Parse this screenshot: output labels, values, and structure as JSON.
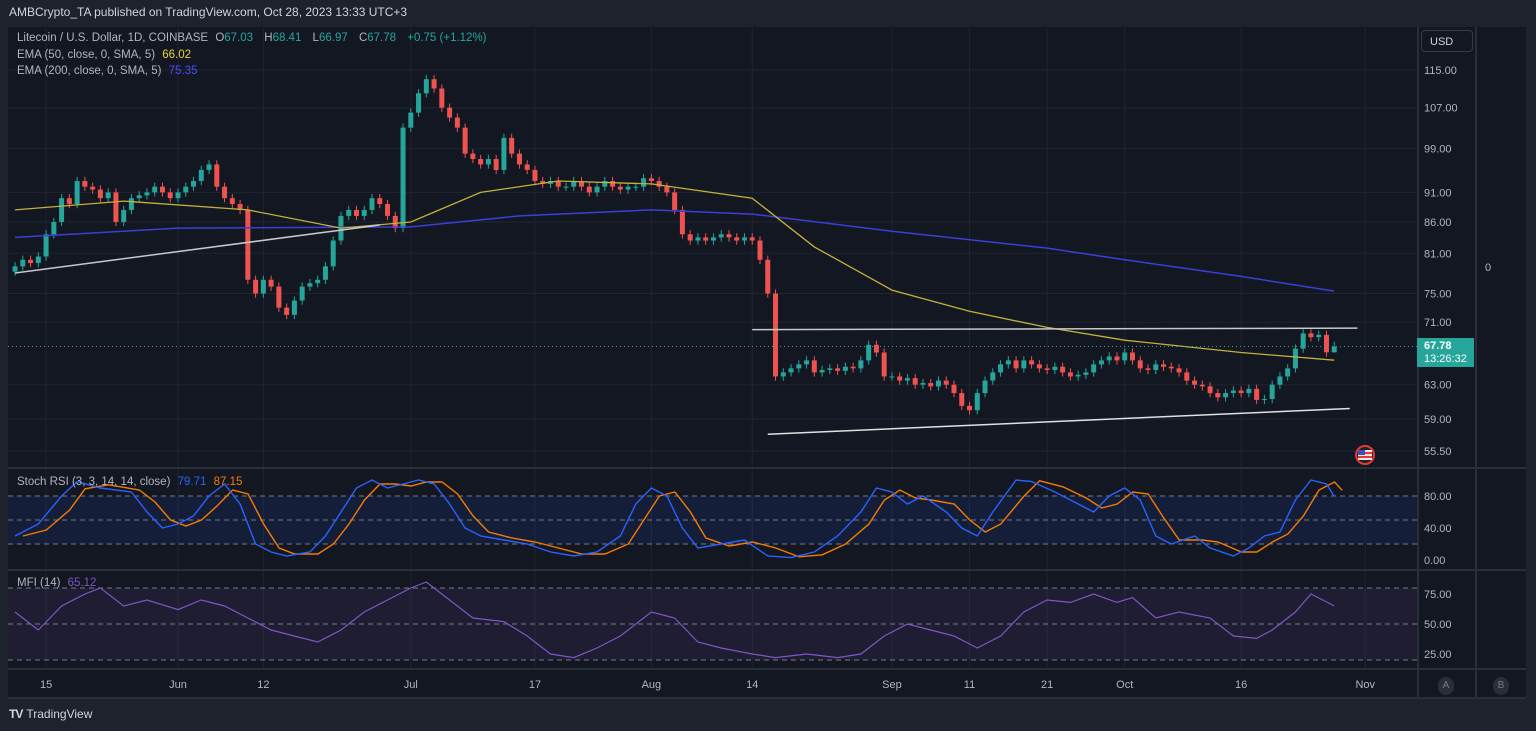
{
  "header": {
    "published": "AMBCrypto_TA published on TradingView.com, Oct 28, 2023 13:33 UTC+3"
  },
  "legend": {
    "symbol": "Litecoin / U.S. Dollar, 1D, COINBASE",
    "o_label": "O",
    "o": "67.03",
    "h_label": "H",
    "h": "68.41",
    "l_label": "L",
    "l": "66.97",
    "c_label": "C",
    "c": "67.78",
    "change": "+0.75 (+1.12%)",
    "ema50_label": "EMA (50, close, 0, SMA, 5)",
    "ema50_value": "66.02",
    "ema200_label": "EMA (200, close, 0, SMA, 5)",
    "ema200_value": "75.35",
    "stoch_label": "Stoch RSI (3, 3, 14, 14, close)",
    "stoch_k": "79.71",
    "stoch_d": "87.15",
    "mfi_label": "MFI (14)",
    "mfi_value": "65.12"
  },
  "price_axis": {
    "currency": "USD",
    "ticks": [
      "115.00",
      "107.00",
      "99.00",
      "91.00",
      "86.00",
      "81.00",
      "75.00",
      "71.00",
      "63.00",
      "59.00",
      "55.50"
    ],
    "last_price": "67.78",
    "countdown": "13:26:32",
    "extra_scale_value": "0"
  },
  "stoch_axis": {
    "ticks": [
      "80.00",
      "40.00",
      "0.00"
    ]
  },
  "mfi_axis": {
    "ticks": [
      "75.00",
      "50.00",
      "25.00"
    ]
  },
  "time_axis": {
    "labels": [
      {
        "label": "15",
        "date": "2023-05-15"
      },
      {
        "label": "Jun",
        "date": "2023-06-01"
      },
      {
        "label": "12",
        "date": "2023-06-12"
      },
      {
        "label": "Jul",
        "date": "2023-07-01"
      },
      {
        "label": "17",
        "date": "2023-07-17"
      },
      {
        "label": "Aug",
        "date": "2023-08-01"
      },
      {
        "label": "14",
        "date": "2023-08-14"
      },
      {
        "label": "Sep",
        "date": "2023-09-01"
      },
      {
        "label": "11",
        "date": "2023-09-11"
      },
      {
        "label": "21",
        "date": "2023-09-21"
      },
      {
        "label": "Oct",
        "date": "2023-10-01"
      },
      {
        "label": "16",
        "date": "2023-10-16"
      },
      {
        "label": "Nov",
        "date": "2023-11-01"
      }
    ]
  },
  "scale_buttons": {
    "a": "A",
    "b": "B"
  },
  "footer": {
    "brand": "TradingView",
    "logo_mark": "TV"
  },
  "colors": {
    "up": "#26a69a",
    "down": "#ef5350",
    "ema50": "#c4b13a",
    "ema200": "#3b3fd6",
    "stoch_k": "#2962ff",
    "stoch_d": "#f57c00",
    "mfi": "#7e57c2"
  },
  "chart_data": {
    "type": "candlestick",
    "title": "Litecoin / U.S. Dollar, 1D, COINBASE",
    "y_scale": "log",
    "ylim": [
      55.5,
      115
    ],
    "start_date": "2023-05-11",
    "closes": [
      79,
      80,
      79.5,
      80.5,
      84,
      86,
      90,
      89,
      93,
      92,
      91.5,
      90,
      91,
      86,
      88,
      90,
      90.5,
      91,
      92,
      91,
      90,
      91,
      92,
      93,
      95,
      96,
      92,
      90,
      89,
      88,
      77,
      75,
      77,
      76,
      73,
      72,
      74,
      76,
      76.5,
      77,
      79,
      83,
      87,
      88,
      87,
      88,
      90,
      89,
      87,
      85,
      103,
      106,
      110,
      113,
      111,
      107,
      105,
      103,
      98,
      97,
      96,
      97,
      95,
      101,
      98,
      96,
      95,
      93,
      92.5,
      93,
      92,
      92,
      93,
      92,
      91,
      92,
      93,
      92,
      91.5,
      92,
      92,
      93.5,
      93,
      92,
      91,
      88,
      84,
      83,
      83.5,
      83,
      83.5,
      84,
      83.5,
      83,
      83.5,
      83,
      80,
      75,
      64,
      64.5,
      65,
      65.5,
      66,
      64.5,
      64.8,
      65,
      64.7,
      65.2,
      65,
      66,
      68,
      67,
      64,
      64,
      63.5,
      63.8,
      63,
      63.2,
      62.8,
      63.5,
      63,
      62,
      60.5,
      60,
      62,
      63.5,
      64.5,
      65.5,
      66,
      65,
      66,
      65.5,
      65,
      64.8,
      65.2,
      64.5,
      64,
      64.2,
      64.5,
      65.5,
      66,
      66.5,
      66,
      67,
      66,
      65,
      64.8,
      65.5,
      65.2,
      65,
      64.5,
      63.5,
      63,
      62.8,
      62,
      61.5,
      62,
      62.3,
      62,
      62.5,
      61.2,
      61.3,
      63,
      64,
      65,
      67.5,
      69.5,
      69,
      69.3,
      67.03,
      67.78
    ],
    "last_candle": {
      "open": 67.03,
      "high": 68.41,
      "low": 66.97,
      "close": 67.78
    },
    "ema50": [
      [
        "2023-05-11",
        88
      ],
      [
        "2023-05-25",
        89.5
      ],
      [
        "2023-06-10",
        88
      ],
      [
        "2023-06-22",
        85
      ],
      [
        "2023-07-01",
        86
      ],
      [
        "2023-07-10",
        91
      ],
      [
        "2023-07-20",
        93
      ],
      [
        "2023-08-01",
        92.5
      ],
      [
        "2023-08-14",
        90
      ],
      [
        "2023-08-22",
        82
      ],
      [
        "2023-09-01",
        75.5
      ],
      [
        "2023-09-11",
        72.5
      ],
      [
        "2023-09-21",
        70.3
      ],
      [
        "2023-10-01",
        68.6
      ],
      [
        "2023-10-16",
        67
      ],
      [
        "2023-10-28",
        66.02
      ]
    ],
    "ema200": [
      [
        "2023-05-11",
        83.5
      ],
      [
        "2023-06-01",
        85
      ],
      [
        "2023-07-01",
        85.2
      ],
      [
        "2023-07-15",
        87
      ],
      [
        "2023-08-01",
        88
      ],
      [
        "2023-08-14",
        87.3
      ],
      [
        "2023-09-01",
        84.5
      ],
      [
        "2023-09-21",
        81.8
      ],
      [
        "2023-10-01",
        80
      ],
      [
        "2023-10-16",
        77.5
      ],
      [
        "2023-10-28",
        75.35
      ]
    ],
    "trendlines": [
      {
        "name": "rising-support-may-jun",
        "from": [
          "2023-05-11",
          78
        ],
        "to": [
          "2023-06-27",
          85.5
        ],
        "color": "#c8c8c8"
      },
      {
        "name": "range-resistance",
        "from": [
          "2023-08-14",
          70
        ],
        "to": [
          "2023-10-31",
          70.2
        ],
        "color": "#c8c8c8"
      },
      {
        "name": "range-support",
        "from": [
          "2023-08-16",
          57.3
        ],
        "to": [
          "2023-10-30",
          60.2
        ],
        "color": "#e0e0e0"
      }
    ],
    "stoch_rsi": {
      "levels": [
        80,
        50,
        20
      ],
      "k": [
        [
          "2023-05-11",
          30
        ],
        [
          "2023-05-14",
          45
        ],
        [
          "2023-05-17",
          80
        ],
        [
          "2023-05-19",
          98
        ],
        [
          "2023-05-22",
          90
        ],
        [
          "2023-05-26",
          85
        ],
        [
          "2023-05-28",
          60
        ],
        [
          "2023-05-30",
          40
        ],
        [
          "2023-06-01",
          45
        ],
        [
          "2023-06-03",
          55
        ],
        [
          "2023-06-05",
          80
        ],
        [
          "2023-06-07",
          95
        ],
        [
          "2023-06-09",
          70
        ],
        [
          "2023-06-11",
          20
        ],
        [
          "2023-06-13",
          10
        ],
        [
          "2023-06-15",
          5
        ],
        [
          "2023-06-18",
          10
        ],
        [
          "2023-06-20",
          30
        ],
        [
          "2023-06-22",
          60
        ],
        [
          "2023-06-24",
          90
        ],
        [
          "2023-06-26",
          100
        ],
        [
          "2023-06-28",
          90
        ],
        [
          "2023-06-30",
          95
        ],
        [
          "2023-07-02",
          100
        ],
        [
          "2023-07-04",
          95
        ],
        [
          "2023-07-06",
          70
        ],
        [
          "2023-07-08",
          40
        ],
        [
          "2023-07-10",
          30
        ],
        [
          "2023-07-13",
          25
        ],
        [
          "2023-07-16",
          20
        ],
        [
          "2023-07-19",
          10
        ],
        [
          "2023-07-22",
          5
        ],
        [
          "2023-07-25",
          10
        ],
        [
          "2023-07-28",
          30
        ],
        [
          "2023-07-30",
          70
        ],
        [
          "2023-08-01",
          90
        ],
        [
          "2023-08-03",
          80
        ],
        [
          "2023-08-05",
          40
        ],
        [
          "2023-08-07",
          15
        ],
        [
          "2023-08-10",
          20
        ],
        [
          "2023-08-13",
          25
        ],
        [
          "2023-08-16",
          5
        ],
        [
          "2023-08-19",
          3
        ],
        [
          "2023-08-22",
          10
        ],
        [
          "2023-08-25",
          30
        ],
        [
          "2023-08-28",
          60
        ],
        [
          "2023-08-30",
          90
        ],
        [
          "2023-09-01",
          85
        ],
        [
          "2023-09-03",
          70
        ],
        [
          "2023-09-05",
          80
        ],
        [
          "2023-09-08",
          60
        ],
        [
          "2023-09-10",
          40
        ],
        [
          "2023-09-12",
          30
        ],
        [
          "2023-09-14",
          60
        ],
        [
          "2023-09-17",
          100
        ],
        [
          "2023-09-19",
          98
        ],
        [
          "2023-09-22",
          85
        ],
        [
          "2023-09-25",
          70
        ],
        [
          "2023-09-27",
          60
        ],
        [
          "2023-09-29",
          80
        ],
        [
          "2023-10-01",
          90
        ],
        [
          "2023-10-03",
          75
        ],
        [
          "2023-10-05",
          30
        ],
        [
          "2023-10-07",
          20
        ],
        [
          "2023-10-10",
          30
        ],
        [
          "2023-10-12",
          15
        ],
        [
          "2023-10-15",
          5
        ],
        [
          "2023-10-17",
          15
        ],
        [
          "2023-10-19",
          30
        ],
        [
          "2023-10-21",
          35
        ],
        [
          "2023-10-23",
          75
        ],
        [
          "2023-10-25",
          100
        ],
        [
          "2023-10-27",
          95
        ],
        [
          "2023-10-28",
          79.71
        ]
      ],
      "d_last": 87.15
    },
    "mfi": {
      "levels": [
        80,
        50,
        20
      ],
      "values": [
        [
          "2023-05-11",
          60
        ],
        [
          "2023-05-14",
          45
        ],
        [
          "2023-05-17",
          65
        ],
        [
          "2023-05-20",
          75
        ],
        [
          "2023-05-22",
          80
        ],
        [
          "2023-05-25",
          65
        ],
        [
          "2023-05-28",
          70
        ],
        [
          "2023-06-01",
          62
        ],
        [
          "2023-06-04",
          70
        ],
        [
          "2023-06-07",
          65
        ],
        [
          "2023-06-10",
          55
        ],
        [
          "2023-06-13",
          45
        ],
        [
          "2023-06-16",
          40
        ],
        [
          "2023-06-19",
          35
        ],
        [
          "2023-06-22",
          45
        ],
        [
          "2023-06-25",
          60
        ],
        [
          "2023-06-28",
          70
        ],
        [
          "2023-07-01",
          80
        ],
        [
          "2023-07-03",
          85
        ],
        [
          "2023-07-06",
          70
        ],
        [
          "2023-07-09",
          55
        ],
        [
          "2023-07-13",
          52
        ],
        [
          "2023-07-16",
          40
        ],
        [
          "2023-07-19",
          25
        ],
        [
          "2023-07-22",
          22
        ],
        [
          "2023-07-25",
          30
        ],
        [
          "2023-07-28",
          40
        ],
        [
          "2023-08-01",
          60
        ],
        [
          "2023-08-04",
          55
        ],
        [
          "2023-08-07",
          35
        ],
        [
          "2023-08-10",
          30
        ],
        [
          "2023-08-14",
          25
        ],
        [
          "2023-08-17",
          22
        ],
        [
          "2023-08-21",
          25
        ],
        [
          "2023-08-25",
          22
        ],
        [
          "2023-08-28",
          25
        ],
        [
          "2023-08-31",
          40
        ],
        [
          "2023-09-03",
          50
        ],
        [
          "2023-09-06",
          45
        ],
        [
          "2023-09-09",
          40
        ],
        [
          "2023-09-12",
          30
        ],
        [
          "2023-09-15",
          40
        ],
        [
          "2023-09-18",
          60
        ],
        [
          "2023-09-21",
          70
        ],
        [
          "2023-09-24",
          68
        ],
        [
          "2023-09-27",
          75
        ],
        [
          "2023-09-30",
          68
        ],
        [
          "2023-10-02",
          72
        ],
        [
          "2023-10-05",
          55
        ],
        [
          "2023-10-08",
          60
        ],
        [
          "2023-10-12",
          55
        ],
        [
          "2023-10-15",
          40
        ],
        [
          "2023-10-18",
          38
        ],
        [
          "2023-10-20",
          45
        ],
        [
          "2023-10-23",
          60
        ],
        [
          "2023-10-25",
          75
        ],
        [
          "2023-10-28",
          65.12
        ]
      ]
    }
  }
}
